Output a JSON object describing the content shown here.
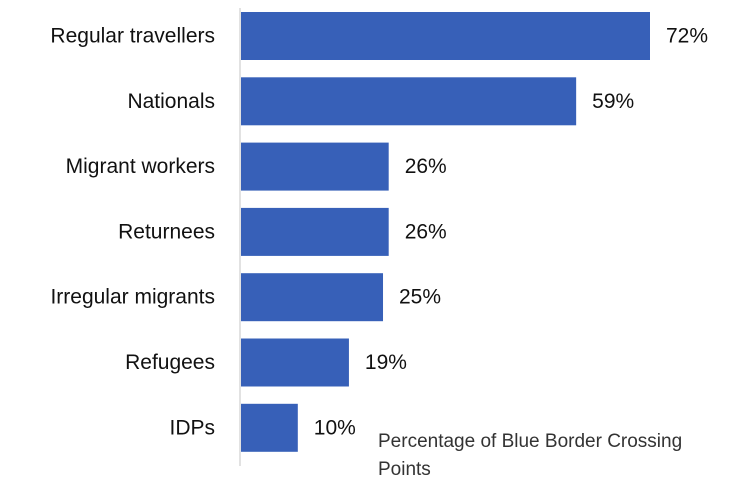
{
  "chart_data": {
    "type": "bar",
    "orientation": "horizontal",
    "categories": [
      "Regular travellers",
      "Nationals",
      "Migrant workers",
      "Returnees",
      "Irregular migrants",
      "Refugees",
      "IDPs"
    ],
    "values": [
      72,
      59,
      26,
      26,
      25,
      19,
      10
    ],
    "value_labels": [
      "72%",
      "59%",
      "26%",
      "26%",
      "25%",
      "19%",
      "10%"
    ],
    "unit": "%",
    "annotation": "Percentage of Blue Border Crossing Points",
    "xlim": [
      0,
      100
    ],
    "grid": false,
    "legend": "none",
    "bar_color": "#3760B8",
    "axis_color": "#D9D9D9"
  }
}
